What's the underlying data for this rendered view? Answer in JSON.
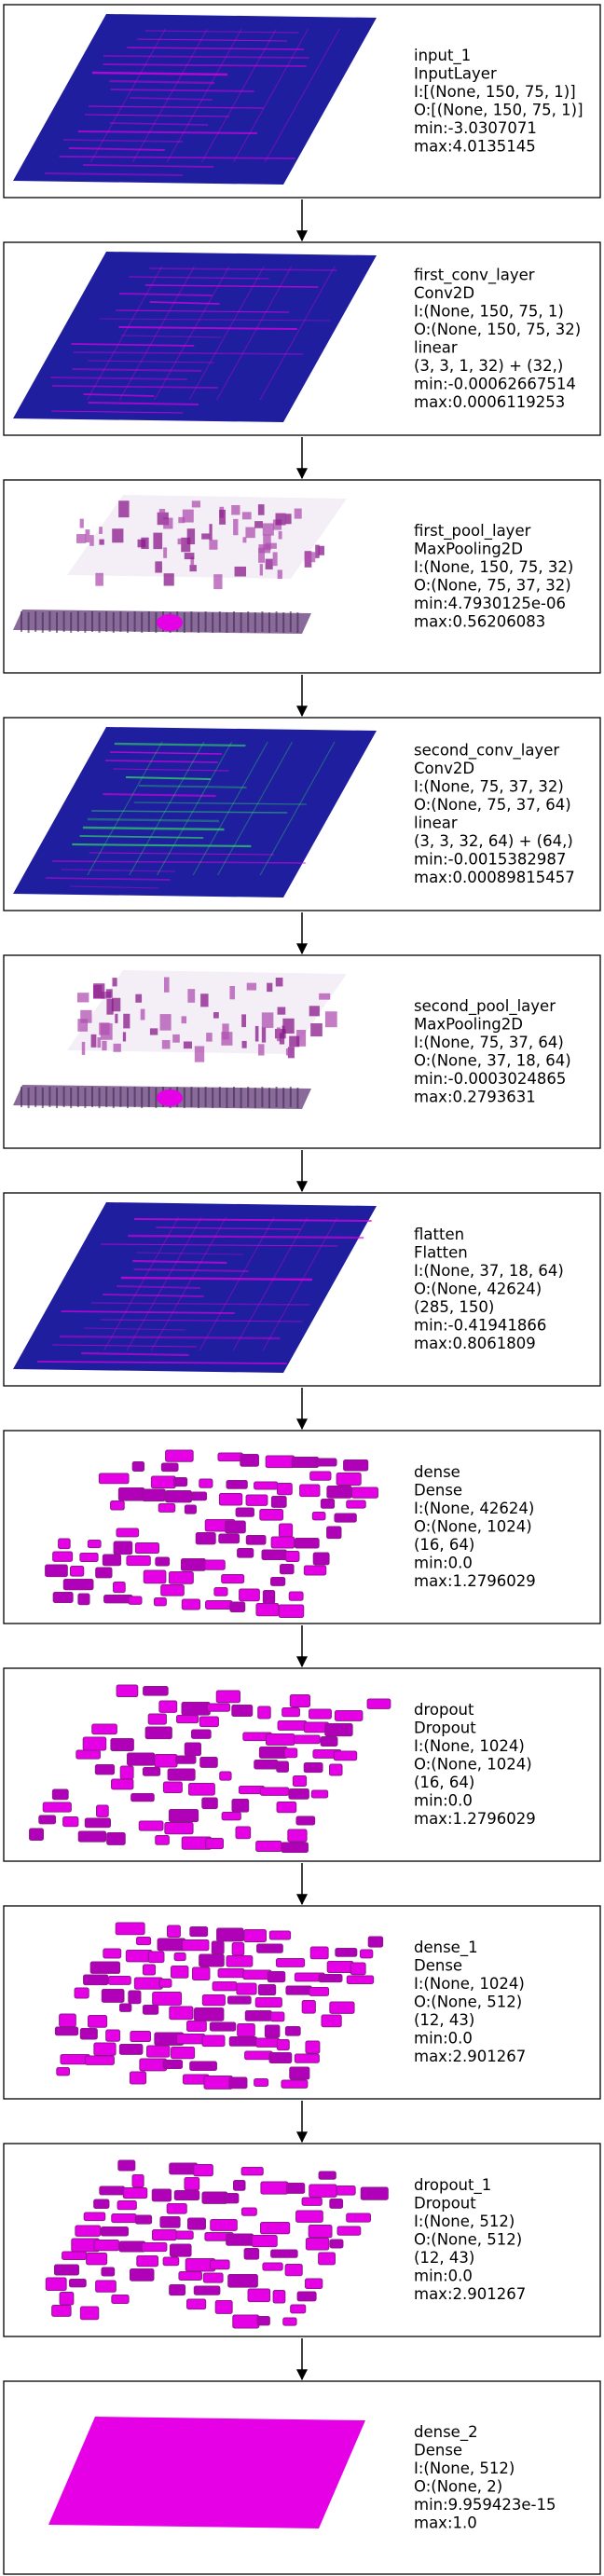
{
  "layers": [
    {
      "lines": [
        "input_1",
        "InputLayer",
        "I:[(None, 150, 75, 1)]",
        "O:[(None, 150, 75, 1)]",
        "min:-3.0307071",
        "max:4.0135145"
      ],
      "viz": "plane",
      "palette": "blue"
    },
    {
      "lines": [
        "first_conv_layer",
        "Conv2D",
        "I:(None, 150, 75, 1)",
        "O:(None, 150, 75, 32)",
        "linear",
        "(3, 3, 1, 32) + (32,)",
        "min:-0.00062667514",
        "max:0.0006119253"
      ],
      "viz": "plane",
      "palette": "blue"
    },
    {
      "lines": [
        "first_pool_layer",
        "MaxPooling2D",
        "I:(None, 150, 75, 32)",
        "O:(None, 75, 37, 32)",
        "min:4.7930125e-06",
        "max:0.56206083"
      ],
      "viz": "pool",
      "palette": "white"
    },
    {
      "lines": [
        "second_conv_layer",
        "Conv2D",
        "I:(None, 75, 37, 32)",
        "O:(None, 75, 37, 64)",
        "linear",
        "(3, 3, 32, 64) + (64,)",
        "min:-0.0015382987",
        "max:0.00089815457"
      ],
      "viz": "plane",
      "palette": "blue-green"
    },
    {
      "lines": [
        "second_pool_layer",
        "MaxPooling2D",
        "I:(None, 75, 37, 64)",
        "O:(None, 37, 18, 64)",
        "min:-0.0003024865",
        "max:0.2793631"
      ],
      "viz": "pool",
      "palette": "white"
    },
    {
      "lines": [
        "flatten",
        "Flatten",
        "I:(None, 37, 18, 64)",
        "O:(None, 42624)",
        "(285, 150)",
        "min:-0.41941866",
        "max:0.8061809"
      ],
      "viz": "plane",
      "palette": "blue"
    },
    {
      "lines": [
        "dense",
        "Dense",
        "I:(None, 42624)",
        "O:(None, 1024)",
        "(16, 64)",
        "min:0.0",
        "max:1.2796029"
      ],
      "viz": "blocks",
      "palette": "magenta"
    },
    {
      "lines": [
        "dropout",
        "Dropout",
        "I:(None, 1024)",
        "O:(None, 1024)",
        "(16, 64)",
        "min:0.0",
        "max:1.2796029"
      ],
      "viz": "blocks",
      "palette": "magenta"
    },
    {
      "lines": [
        "dense_1",
        "Dense",
        "I:(None, 1024)",
        "O:(None, 512)",
        "(12, 43)",
        "min:0.0",
        "max:2.901267"
      ],
      "viz": "blocks",
      "palette": "magenta"
    },
    {
      "lines": [
        "dropout_1",
        "Dropout",
        "I:(None, 512)",
        "O:(None, 512)",
        "(12, 43)",
        "min:0.0",
        "max:2.901267"
      ],
      "viz": "blocks",
      "palette": "magenta"
    },
    {
      "lines": [
        "dense_2",
        "Dense",
        "I:(None, 512)",
        "O:(None, 2)",
        "min:9.959423e-15",
        "max:1.0"
      ],
      "viz": "solid",
      "palette": "magenta"
    }
  ],
  "colors": {
    "blue": "#1e1e9e",
    "blue_dark": "#14147a",
    "magenta": "#e600e6",
    "magenta_dark": "#8a1a8a",
    "green": "#33dd66",
    "frame": "#000000"
  }
}
